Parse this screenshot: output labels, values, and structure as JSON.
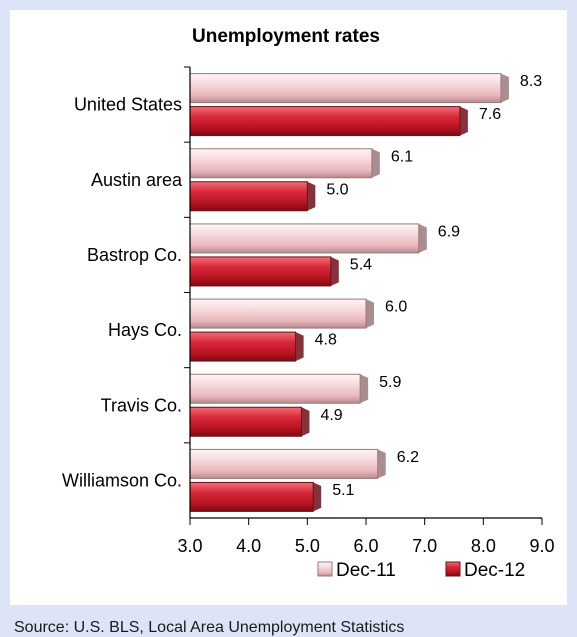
{
  "source": "Source: U.S. BLS, Local Area Unemployment Statistics",
  "colors": {
    "dec11_fill": "#f2c9cc",
    "dec11_edge": "#9a7a7c",
    "dec12_fill": "#cc1f2f",
    "dec12_edge": "#6e0f17",
    "page_background": "#dde4f7"
  },
  "chart_data": {
    "type": "bar",
    "orientation": "horizontal",
    "title": "Unemployment rates",
    "categories": [
      "United States",
      "Austin area",
      "Bastrop Co.",
      "Hays Co.",
      "Travis Co.",
      "Williamson Co."
    ],
    "series": [
      {
        "name": "Dec-11",
        "values": [
          8.3,
          6.1,
          6.9,
          6.0,
          5.9,
          6.2
        ]
      },
      {
        "name": "Dec-12",
        "values": [
          7.6,
          5.0,
          5.4,
          4.8,
          4.9,
          5.1
        ]
      }
    ],
    "data_labels": [
      [
        "8.3",
        "6.1",
        "6.9",
        "6.0",
        "5.9",
        "6.2"
      ],
      [
        "7.6",
        "5.0",
        "5.4",
        "4.8",
        "4.9",
        "5.1"
      ]
    ],
    "xlim": [
      3.0,
      9.0
    ],
    "xticks": [
      "3.0",
      "4.0",
      "5.0",
      "6.0",
      "7.0",
      "8.0",
      "9.0"
    ],
    "xlabel": "",
    "ylabel": "",
    "grid": false,
    "legend_position": "bottom-right"
  }
}
